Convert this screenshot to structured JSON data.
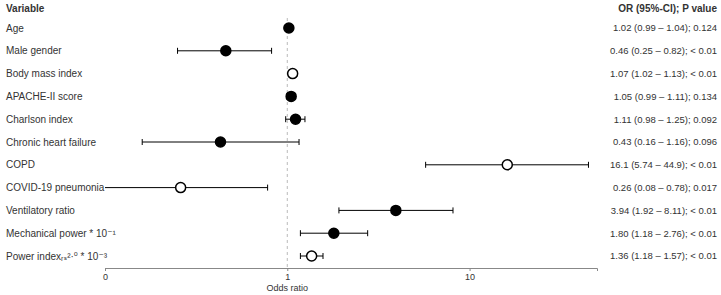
{
  "chart_data": {
    "type": "forest",
    "category_header": "Variable",
    "value_header": "OR (95%-CI); P value",
    "x_label": "Odds ratio",
    "categories": [
      "Age",
      "Male gender",
      "Body mass index",
      "APACHE-II score",
      "Charlson index",
      "Chronic heart failure",
      "COPD",
      "COVID-19 pneumonia",
      "Ventilatory ratio",
      "Mechanical power * 10⁻¹",
      "Power indexᵣₛ²·⁰ * 10⁻³"
    ],
    "series": [
      {
        "marker": "filled",
        "color": "#000000",
        "values": [
          1.02,
          0.46,
          null,
          1.05,
          1.11,
          0.43,
          null,
          null,
          3.94,
          1.8,
          null
        ],
        "lower": [
          0.99,
          0.25,
          null,
          0.99,
          0.98,
          0.16,
          null,
          null,
          1.92,
          1.18,
          null
        ],
        "upper": [
          1.04,
          0.82,
          null,
          1.11,
          1.25,
          1.16,
          null,
          null,
          8.11,
          2.76,
          null
        ],
        "value_labels": [
          "1.02 (0.99 – 1.04); 0.124",
          "0.46 (0.25 – 0.82); < 0.01",
          null,
          "1.05 (0.99 – 1.11); 0.134",
          "1.11 (0.98 – 1.25); 0.092",
          "0.43 (0.16 – 1.16); 0.096",
          null,
          null,
          "3.94 (1.92 – 8.11); < 0.01",
          "1.80 (1.18 – 2.76); < 0.01",
          null
        ]
      },
      {
        "marker": "open",
        "color": "#000000",
        "values": [
          null,
          null,
          1.07,
          null,
          null,
          null,
          16.1,
          0.26,
          null,
          null,
          1.36
        ],
        "lower": [
          null,
          null,
          1.02,
          null,
          null,
          null,
          5.74,
          0.08,
          null,
          null,
          1.18
        ],
        "upper": [
          null,
          null,
          1.13,
          null,
          null,
          null,
          44.9,
          0.78,
          null,
          null,
          1.57
        ],
        "value_labels": [
          null,
          null,
          "1.07 (1.02 – 1.13); < 0.01",
          null,
          null,
          null,
          "16.1 (5.74 – 44.9); < 0.01",
          "0.26 (0.08 – 0.78); 0.017",
          null,
          null,
          "1.36 (1.18 – 1.57); < 0.01"
        ]
      }
    ],
    "log": "x",
    "xlim": [
      0.1,
      50
    ],
    "xticks": [
      {
        "value": 0.1,
        "label": "0"
      },
      1,
      10
    ],
    "reference_line": 1
  }
}
